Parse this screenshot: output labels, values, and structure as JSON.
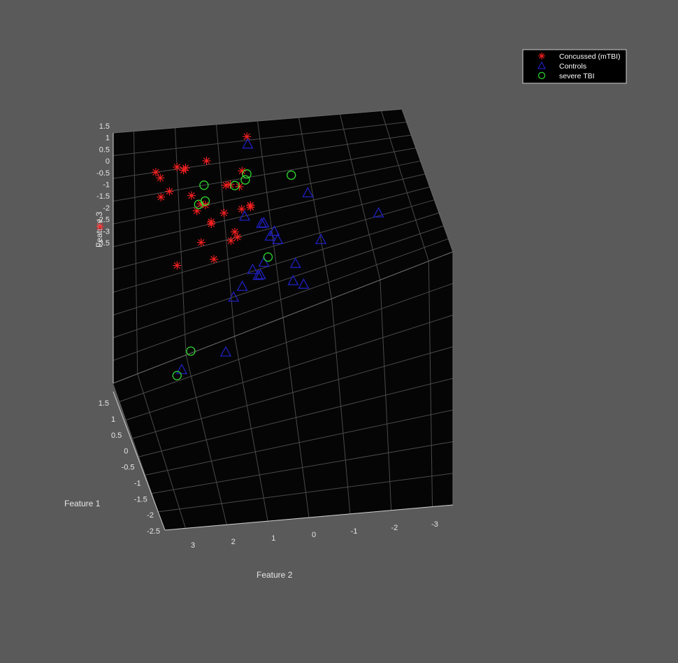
{
  "figure": {
    "background": "#5a5a5a",
    "axes_background": "#050505",
    "grid_color": "#4a4a4a",
    "text_color": "#e6e6e6"
  },
  "chart_data": {
    "type": "scatter",
    "dimensions": 3,
    "xlabel": "Feature 1",
    "ylabel": "Feature 2",
    "zlabel": "Feature 3",
    "feature1_ticks": [
      "1.5",
      "1",
      "0.5",
      "0",
      "-0.5",
      "-1",
      "-1.5",
      "-2",
      "-2.5"
    ],
    "feature2_ticks": [
      "3",
      "2",
      "1",
      "0",
      "-1",
      "-2",
      "-3"
    ],
    "feature3_ticks": [
      "1.5",
      "1",
      "0.5",
      "0",
      "-0.5",
      "-1",
      "-1.5",
      "-2",
      "-2.5",
      "-3",
      "-3.5"
    ],
    "feature1_range": [
      -2.5,
      1.5
    ],
    "feature2_range": [
      -3.5,
      3.5
    ],
    "feature3_range": [
      -4,
      1.5
    ],
    "grid": true,
    "legend_position": "top-right",
    "series": [
      {
        "name": "Concussed (mTBI)",
        "marker": "asterisk",
        "color": "#ff2020",
        "points": [
          {
            "f2": 0.3,
            "f3": 1.1
          },
          {
            "f2": 0.6,
            "f3": -0.2
          },
          {
            "f2": 1.3,
            "f3": 0.6
          },
          {
            "f2": 1.8,
            "f3": 0.5
          },
          {
            "f2": 2.0,
            "f3": 0.55
          },
          {
            "f2": 1.85,
            "f3": 0.45
          },
          {
            "f2": 2.5,
            "f3": 0.5
          },
          {
            "f2": 2.4,
            "f3": 0.35
          },
          {
            "f2": 2.4,
            "f3": -0.1
          },
          {
            "f2": 2.2,
            "f3": 0.0
          },
          {
            "f2": 1.7,
            "f3": -0.2
          },
          {
            "f2": 1.5,
            "f3": -0.45
          },
          {
            "f2": 1.6,
            "f3": -0.6
          },
          {
            "f2": 0.9,
            "f3": -0.1
          },
          {
            "f2": 0.8,
            "f3": -0.1
          },
          {
            "f2": 0.5,
            "f3": 0.2
          },
          {
            "f2": 0.4,
            "f3": -0.75
          },
          {
            "f2": 0.6,
            "f3": -0.8
          },
          {
            "f2": 1.0,
            "f3": -0.8
          },
          {
            "f2": 1.3,
            "f3": -0.95
          },
          {
            "f2": 1.3,
            "f3": -1.0
          },
          {
            "f2": 0.8,
            "f3": -1.35
          },
          {
            "f2": 0.9,
            "f3": -1.55
          },
          {
            "f2": 0.75,
            "f3": -1.5
          },
          {
            "f2": 1.55,
            "f3": -1.4
          },
          {
            "f2": 2.1,
            "f3": -1.8
          },
          {
            "f2": 1.3,
            "f3": -1.9
          },
          {
            "f2": 3.8,
            "f3": -0.5
          },
          {
            "f2": 1.4,
            "f3": -0.5
          },
          {
            "f2": 0.4,
            "f3": -0.8
          }
        ]
      },
      {
        "name": "Controls",
        "marker": "triangle",
        "color": "#1f1fbf",
        "points": [
          {
            "f2": 0.3,
            "f3": 0.9
          },
          {
            "f2": -0.9,
            "f3": -0.75
          },
          {
            "f2": 0.55,
            "f3": -1.0
          },
          {
            "f2": 0.2,
            "f3": -1.3
          },
          {
            "f2": 0.15,
            "f3": -1.3
          },
          {
            "f2": -0.05,
            "f3": -1.6
          },
          {
            "f2": 0.05,
            "f3": -1.7
          },
          {
            "f2": -0.1,
            "f3": -1.85
          },
          {
            "f2": -2.3,
            "f3": -1.9
          },
          {
            "f2": -1.0,
            "f3": -2.2
          },
          {
            "f2": 0.25,
            "f3": -2.35
          },
          {
            "f2": 0.5,
            "f3": -2.45
          },
          {
            "f2": 0.4,
            "f3": -2.65
          },
          {
            "f2": 0.35,
            "f3": -2.65
          },
          {
            "f2": 0.75,
            "f3": -2.8
          },
          {
            "f2": -0.4,
            "f3": -2.65
          },
          {
            "f2": 0.95,
            "f3": -3.0
          },
          {
            "f2": -0.3,
            "f3": -3.1
          },
          {
            "f2": -0.5,
            "f3": -3.3
          },
          {
            "f2": 1.2,
            "f3": -4.3
          },
          {
            "f2": 2.1,
            "f3": -4.3
          }
        ]
      },
      {
        "name": "severe TBI",
        "marker": "circle",
        "color": "#2fdc2f",
        "points": [
          {
            "f2": 1.4,
            "f3": 0.0
          },
          {
            "f2": 0.4,
            "f3": 0.1
          },
          {
            "f2": 0.45,
            "f3": -0.05
          },
          {
            "f2": 0.7,
            "f3": -0.15
          },
          {
            "f2": -0.6,
            "f3": -0.15
          },
          {
            "f2": 1.55,
            "f3": -0.45
          },
          {
            "f2": 1.4,
            "f3": -0.4
          },
          {
            "f2": 0.15,
            "f3": -2.25
          },
          {
            "f2": 1.9,
            "f3": -3.95
          },
          {
            "f2": 2.2,
            "f3": -4.4
          }
        ]
      }
    ]
  }
}
